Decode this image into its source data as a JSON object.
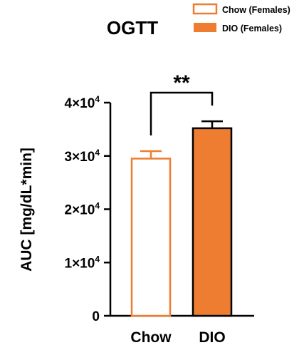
{
  "chart_data": {
    "type": "bar",
    "title": "OGTT",
    "ylabel": "AUC [mg/dL*min]",
    "xlabel": "",
    "categories": [
      "Chow",
      "DIO"
    ],
    "values": [
      29500,
      35200
    ],
    "errors": [
      1400,
      1300
    ],
    "ylim": [
      0,
      40000
    ],
    "yticks": [
      {
        "value": 0,
        "mantissa": "0",
        "exponent": ""
      },
      {
        "value": 10000,
        "mantissa": "1×10",
        "exponent": "4"
      },
      {
        "value": 20000,
        "mantissa": "2×10",
        "exponent": "4"
      },
      {
        "value": 30000,
        "mantissa": "3×10",
        "exponent": "4"
      },
      {
        "value": 40000,
        "mantissa": "4×10",
        "exponent": "4"
      }
    ],
    "legend": {
      "position": "top-right",
      "entries": [
        {
          "label": "Chow (Females)",
          "style": "outline"
        },
        {
          "label": "DIO (Females)",
          "style": "filled"
        }
      ]
    },
    "significance": {
      "label": "**",
      "between": [
        0,
        1
      ]
    },
    "grid": false,
    "colors": {
      "accent": "#ee7d31",
      "axis": "#000000"
    }
  }
}
